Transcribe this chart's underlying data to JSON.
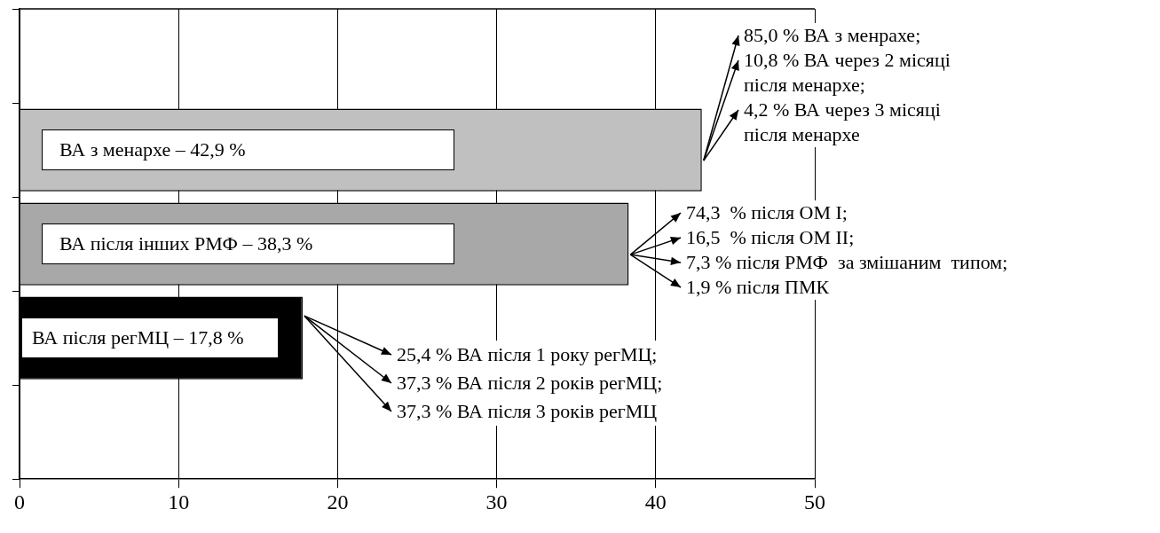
{
  "chart_data": {
    "type": "bar",
    "orientation": "horizontal",
    "categories": [
      null,
      null,
      null,
      null,
      null
    ],
    "values": [
      null,
      42.9,
      38.3,
      17.8,
      null
    ],
    "colors": [
      "#c0c0c0",
      "#c0c0c0",
      "#a8a8a8",
      "#000000",
      "#000000"
    ],
    "xlim": [
      0,
      50
    ],
    "xticks": [
      0,
      10,
      20,
      30,
      40,
      50
    ],
    "grid": "x",
    "tick_labels": "x",
    "annotations": [
      "ВА з менархе – 42,9 %",
      "ВА після інших РМФ – 38,3 %",
      "ВА після регМЦ – 17,8 %",
      "85,0 % ВА з менрахе;",
      "10,8 % ВА через 2 місяці після менархе;",
      "4,2 % ВА через 3 місяці після менархе",
      "74,3  % після ОМ І;",
      "16,5  % після ОМ ІІ;",
      "7,3 % після РМФ  за змішаним  типом;",
      "1,9 % після ПМК",
      "25,4 % ВА після 1 року регМЦ;",
      "37,3 % ВА після 2 років регМЦ;",
      "37,3 % ВА після 3 років регМЦ"
    ]
  }
}
